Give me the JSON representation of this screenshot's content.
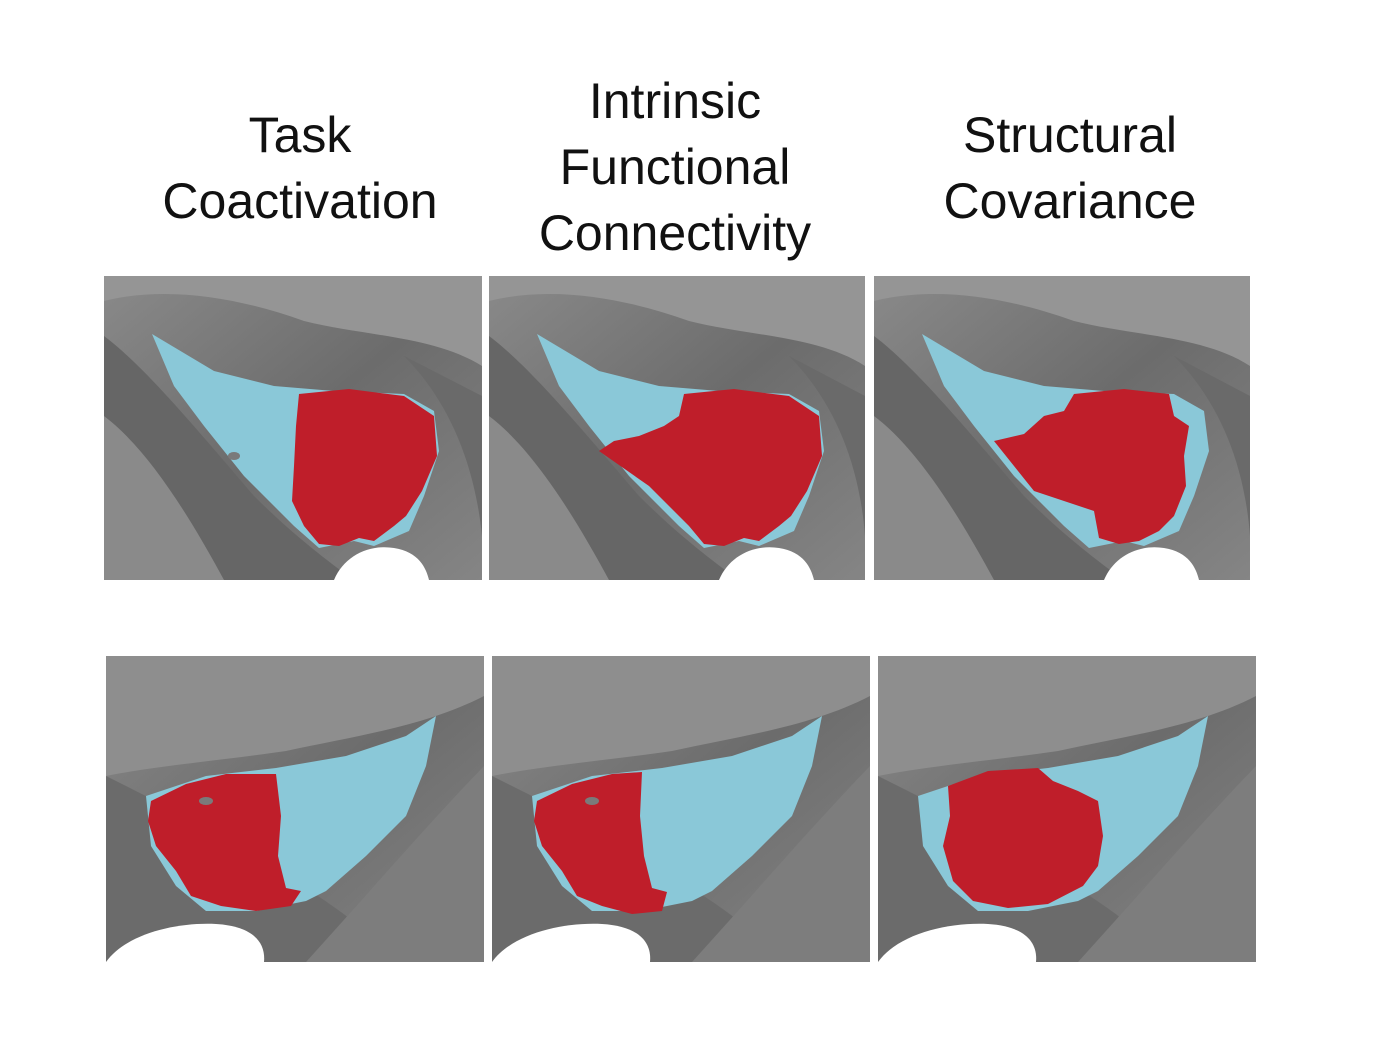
{
  "columns": [
    {
      "id": "task",
      "lines": [
        "Task",
        "Coactivation"
      ]
    },
    {
      "id": "ifc",
      "lines": [
        "Intrinsic",
        "Functional",
        "Connectivity"
      ]
    },
    {
      "id": "sc",
      "lines": [
        "Structural",
        "Covariance"
      ]
    }
  ],
  "colors": {
    "red_cluster": "#bf1e2a",
    "blue_cluster": "#8ac8d8",
    "cortex_gray": "#7a7a7a",
    "background": "#ffffff"
  },
  "rows": [
    "top",
    "bottom"
  ]
}
